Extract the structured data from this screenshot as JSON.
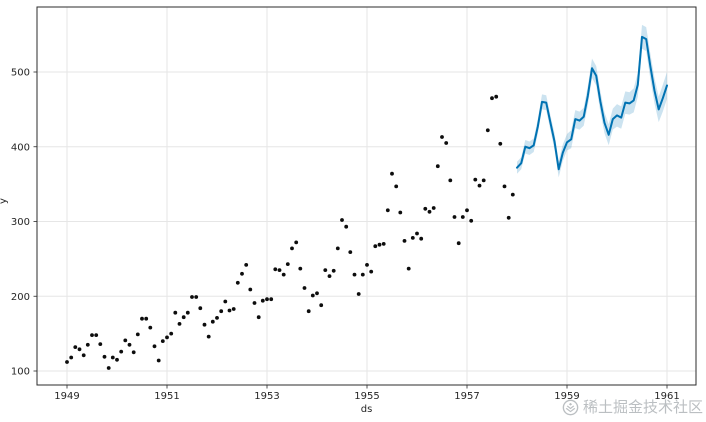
{
  "watermark": {
    "text": "稀土掘金技术社区",
    "icon": "juejin-logo",
    "color": "rgba(146,151,156,0.62)"
  },
  "chart_data": {
    "type": "scatter",
    "title": "",
    "xlabel": "ds",
    "ylabel": "y",
    "grid": true,
    "legend": "none",
    "x_tick_years": [
      1949,
      1951,
      1953,
      1955,
      1957,
      1959,
      1961
    ],
    "x_tick_labels": [
      "1949",
      "1951",
      "1953",
      "1955",
      "1957",
      "1959",
      "1961"
    ],
    "y_ticks": [
      100,
      200,
      300,
      400,
      500
    ],
    "y_tick_labels": [
      "100",
      "200",
      "300",
      "400",
      "500"
    ],
    "ylim": [
      81,
      588
    ],
    "xlim": [
      "1948-06",
      "1961-08"
    ],
    "colors": {
      "dots": "#0d0d0d",
      "line": "#0072B2",
      "band": "rgba(0,114,178,0.2)",
      "grid": "#e6e6e6",
      "spine": "#2b2b2b",
      "tick_text": "#262626"
    },
    "series": [
      {
        "name": "observed",
        "kind": "scatter",
        "start": "1949-01",
        "freq": "monthly",
        "values": [
          112,
          118,
          132,
          129,
          121,
          135,
          148,
          148,
          136,
          119,
          104,
          118,
          115,
          126,
          141,
          135,
          125,
          149,
          170,
          170,
          158,
          133,
          114,
          140,
          145,
          150,
          178,
          163,
          172,
          178,
          199,
          199,
          184,
          162,
          146,
          166,
          171,
          180,
          193,
          181,
          183,
          218,
          230,
          242,
          209,
          191,
          172,
          194,
          196,
          196,
          236,
          235,
          229,
          243,
          264,
          272,
          237,
          211,
          180,
          201,
          204,
          188,
          235,
          227,
          234,
          264,
          302,
          293,
          259,
          229,
          203,
          229,
          242,
          233,
          267,
          269,
          270,
          315,
          364,
          347,
          312,
          274,
          237,
          278,
          284,
          277,
          317,
          313,
          318,
          374,
          413,
          405,
          355,
          306,
          271,
          306,
          315,
          301,
          356,
          348,
          355,
          422,
          465,
          467,
          404,
          347,
          305,
          336
        ]
      },
      {
        "name": "forecast",
        "kind": "line-with-band",
        "start": "1958-01",
        "freq": "monthly",
        "yhat": [
          372,
          378,
          400,
          398,
          402,
          427,
          460,
          459,
          433,
          407,
          370,
          392,
          406,
          410,
          437,
          435,
          440,
          468,
          505,
          495,
          461,
          432,
          416,
          437,
          442,
          439,
          459,
          458,
          462,
          483,
          547,
          544,
          508,
          475,
          450,
          465,
          482
        ],
        "yhat_lower": [
          364,
          370,
          391,
          389,
          393,
          417,
          450,
          449,
          423,
          396,
          359,
          381,
          395,
          398,
          425,
          423,
          428,
          455,
          492,
          482,
          447,
          418,
          402,
          423,
          427,
          424,
          444,
          443,
          446,
          467,
          531,
          528,
          491,
          458,
          433,
          447,
          464
        ],
        "yhat_upper": [
          380,
          386,
          409,
          407,
          411,
          437,
          470,
          469,
          443,
          418,
          381,
          403,
          417,
          422,
          449,
          447,
          452,
          481,
          518,
          508,
          475,
          446,
          430,
          451,
          457,
          454,
          474,
          473,
          478,
          499,
          563,
          560,
          525,
          492,
          467,
          483,
          500
        ]
      }
    ]
  }
}
